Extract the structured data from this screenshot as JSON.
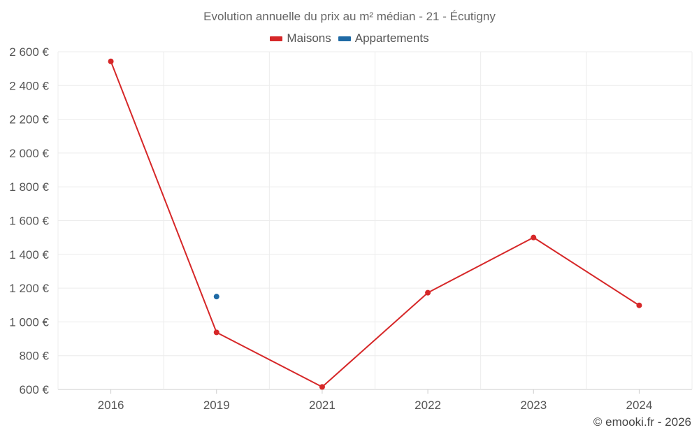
{
  "chart_data": {
    "type": "line",
    "title": "Evolution annuelle du prix au m² médian - 21 - Écutigny",
    "categories": [
      "2016",
      "2019",
      "2021",
      "2022",
      "2023",
      "2024"
    ],
    "series": [
      {
        "name": "Maisons",
        "color": "#d62728",
        "values": [
          2543,
          938,
          615,
          1173,
          1500,
          1098
        ]
      },
      {
        "name": "Appartements",
        "color": "#1f6aa5",
        "values": [
          null,
          1150,
          null,
          null,
          null,
          null
        ]
      }
    ],
    "ylim": [
      600,
      2600
    ],
    "yticks": [
      600,
      800,
      1000,
      1200,
      1400,
      1600,
      1800,
      2000,
      2200,
      2400,
      2600
    ],
    "ytick_labels": [
      "600 €",
      "800 €",
      "1 000 €",
      "1 200 €",
      "1 400 €",
      "1 600 €",
      "1 800 €",
      "2 000 €",
      "2 200 €",
      "2 400 €",
      "2 600 €"
    ],
    "xlabel": "",
    "ylabel": "",
    "grid": true,
    "legend_position": "top-center"
  },
  "credit": "© emooki.fr - 2026"
}
